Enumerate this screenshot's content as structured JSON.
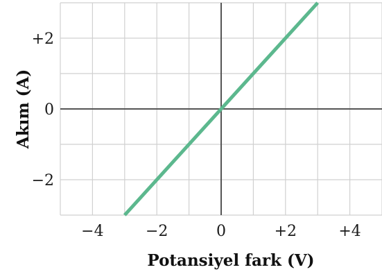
{
  "chart_data": {
    "type": "line",
    "xlabel": "Potansiyel fark (V)",
    "ylabel": "Akım (A)",
    "xlim": [
      -5,
      5
    ],
    "ylim": [
      -3,
      3
    ],
    "x_grid_step": 1,
    "y_grid_step": 1,
    "grid": true,
    "x_ticks": [
      {
        "value": -4,
        "label": "−4"
      },
      {
        "value": -2,
        "label": "−2"
      },
      {
        "value": 0,
        "label": "0"
      },
      {
        "value": 2,
        "label": "+2"
      },
      {
        "value": 4,
        "label": "+4"
      }
    ],
    "y_ticks": [
      {
        "value": 2,
        "label": "+2"
      },
      {
        "value": 0,
        "label": "0"
      },
      {
        "value": -2,
        "label": "−2"
      }
    ],
    "series": [
      {
        "color": "#5cb88e",
        "x": [
          -3,
          3
        ],
        "y": [
          -3,
          3
        ]
      }
    ],
    "colors": {
      "grid": "#d0d0d0",
      "axes": "#555555",
      "line": "#5cb88e"
    }
  }
}
